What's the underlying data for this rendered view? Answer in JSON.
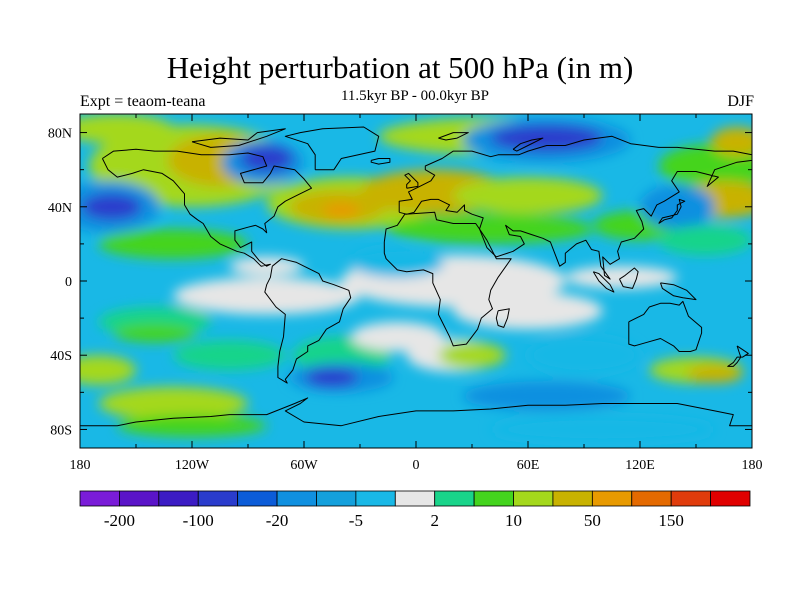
{
  "title": "Height perturbation at 500 hPa (in m)",
  "subtitle": "11.5kyr BP - 00.0kyr BP",
  "left_label": "Expt = teaom-teana",
  "right_label": "DJF",
  "map": {
    "projection": "cylindrical-equidistant",
    "lon_range": [
      -180,
      180
    ],
    "lat_range": [
      -90,
      90
    ],
    "lon_ticks": [
      "180",
      "120W",
      "60W",
      "0",
      "60E",
      "120E",
      "180"
    ],
    "lat_ticks": [
      "80N",
      "40N",
      "0",
      "40S",
      "80S"
    ],
    "field_colors": {
      "strong_negative": "#2a3ccc",
      "negative": "#1090e0",
      "weak_negative": "#19b8e6",
      "neutral": "#e6e6e6",
      "weak_positive": "#19d48a",
      "positive": "#44d41e",
      "moderate_positive": "#a4d81c",
      "strong_positive": "#c8b200",
      "very_strong_positive": "#e89a00"
    }
  },
  "colorbar": {
    "colors": [
      "#7a1cd8",
      "#5a14c8",
      "#3c1cc4",
      "#2a3ccc",
      "#0c5cd8",
      "#1090e0",
      "#14a0dc",
      "#19b8e6",
      "#e6e6e6",
      "#19d48a",
      "#44d41e",
      "#a4d81c",
      "#c8b200",
      "#e89a00",
      "#e46a00",
      "#e03c0c",
      "#e00000"
    ],
    "labels": [
      "-200",
      "-100",
      "-20",
      "-5",
      "2",
      "10",
      "50",
      "150"
    ]
  }
}
